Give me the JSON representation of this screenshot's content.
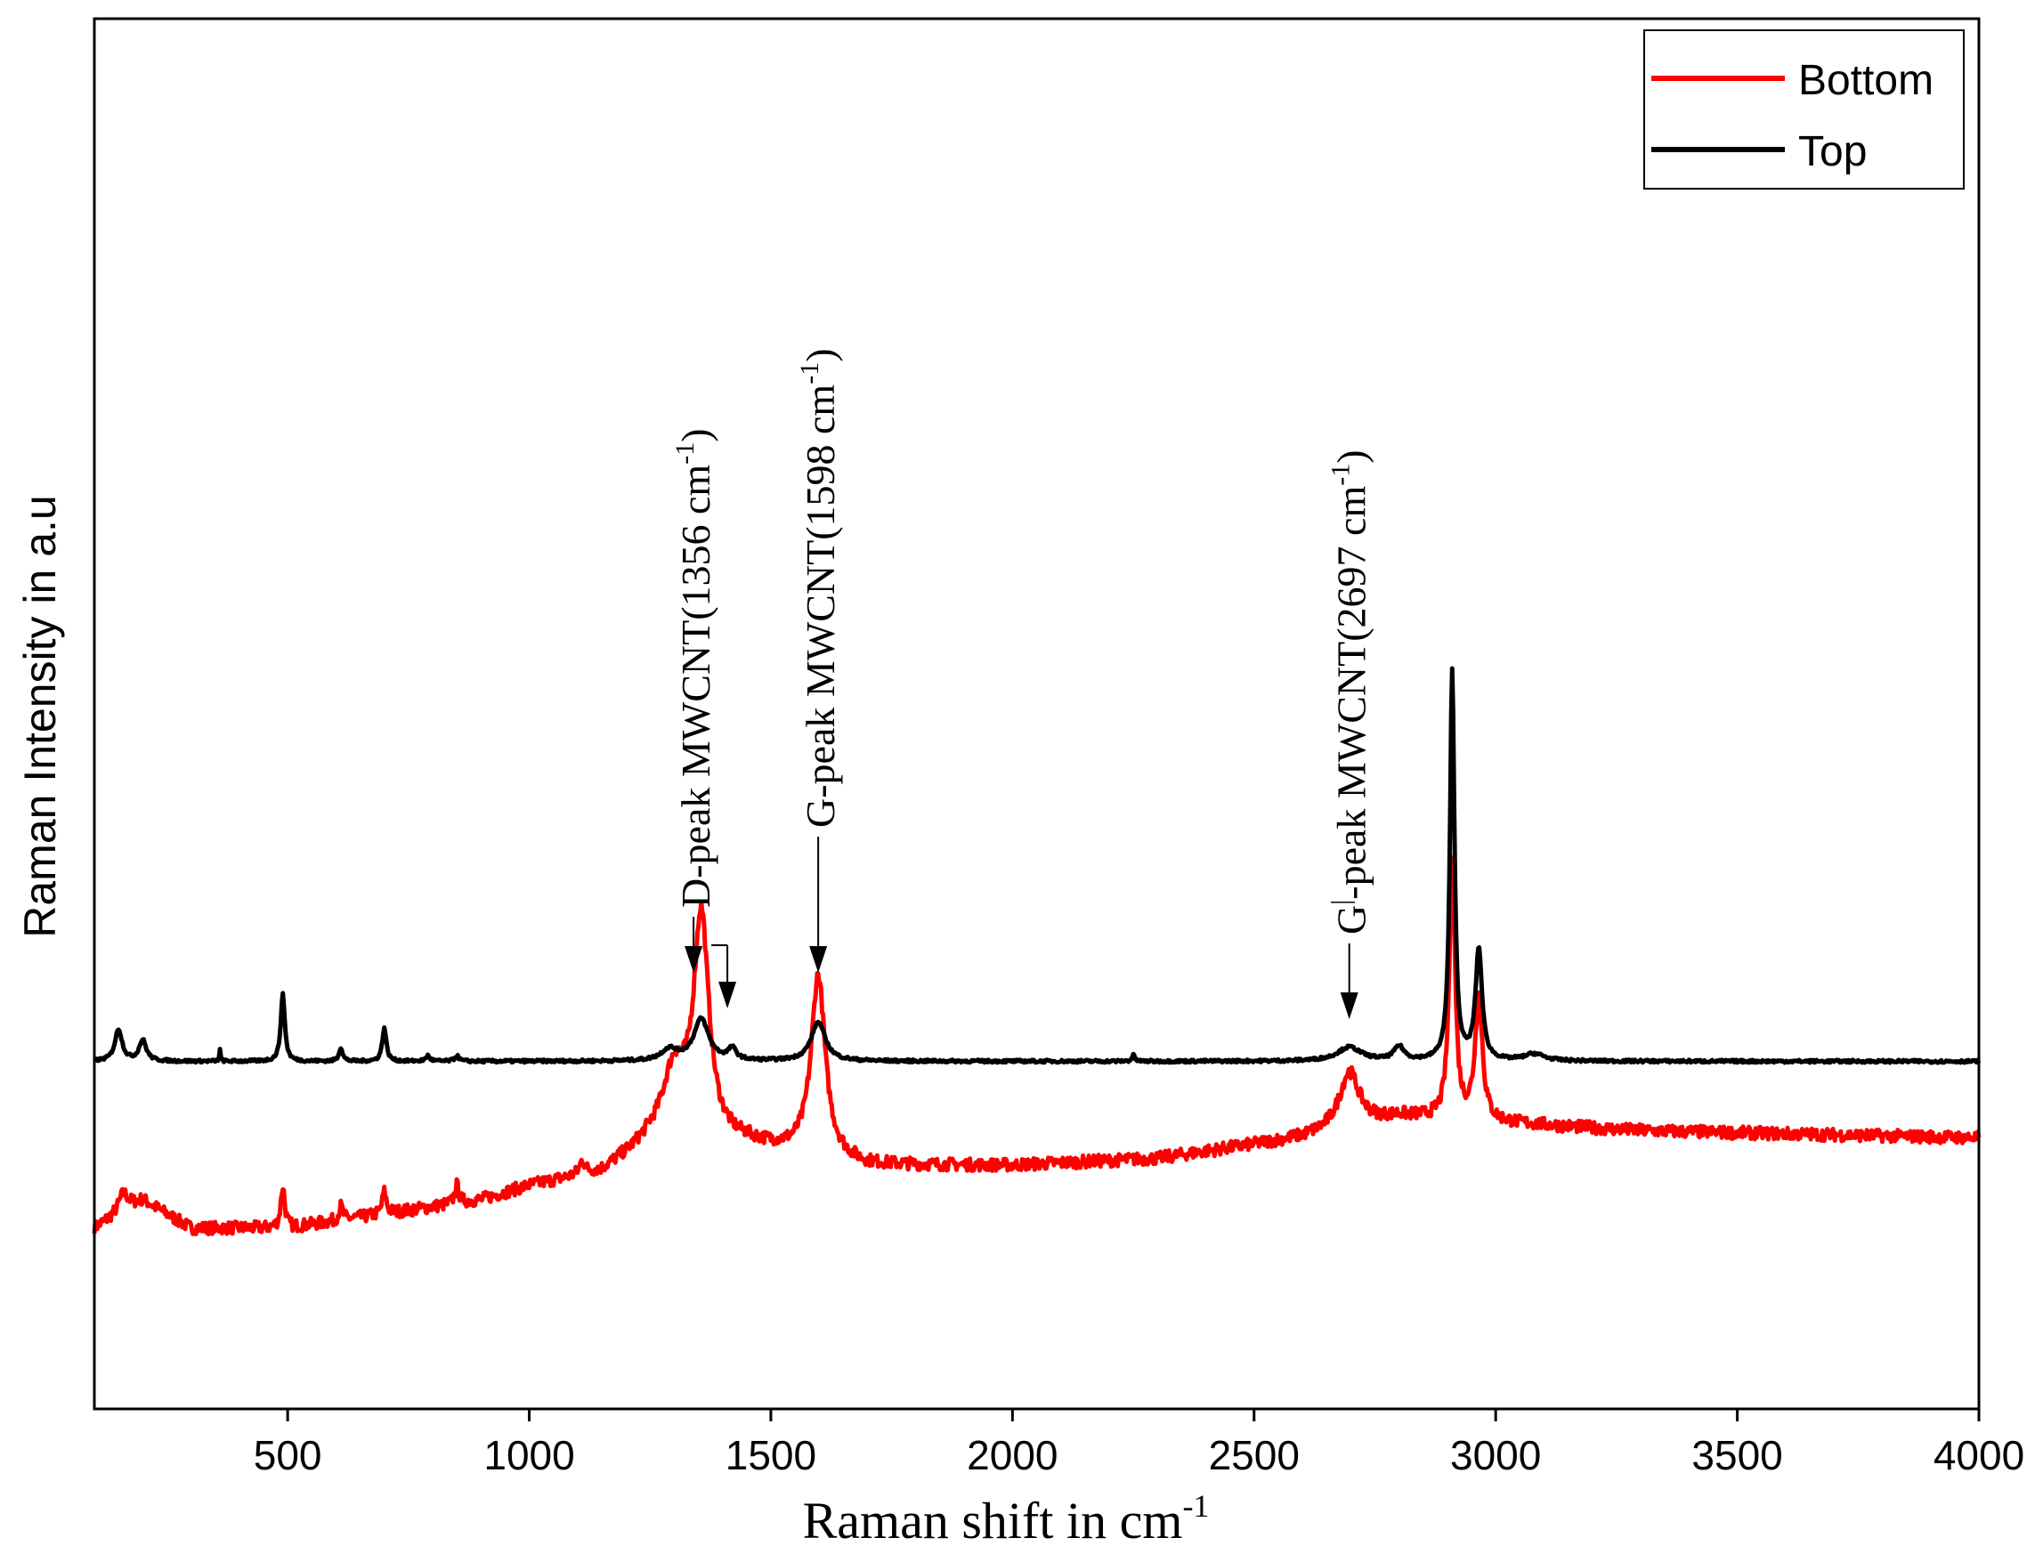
{
  "chart_data": {
    "type": "line",
    "title": "",
    "xlabel": "Raman shift in cm",
    "xlabel_superscript": "-1",
    "ylabel": "Raman Intensity in a.u",
    "xlim": [
      100,
      4000
    ],
    "ylim": [
      0,
      100
    ],
    "xticks": [
      500,
      1000,
      1500,
      2000,
      2500,
      3000,
      3500,
      4000
    ],
    "yticks_visible": false,
    "grid": false,
    "legend_position": "top-right",
    "series": [
      {
        "name": "Bottom",
        "color": "#ff0000",
        "baseline": [
          [
            100,
            13
          ],
          [
            200,
            15
          ],
          [
            300,
            13
          ],
          [
            500,
            13
          ],
          [
            700,
            14
          ],
          [
            900,
            15
          ],
          [
            1000,
            16
          ],
          [
            1150,
            17
          ],
          [
            1250,
            19
          ],
          [
            1450,
            19
          ],
          [
            1700,
            17.5
          ],
          [
            2000,
            17.5
          ],
          [
            2300,
            18
          ],
          [
            2600,
            19.5
          ],
          [
            2800,
            21
          ],
          [
            3050,
            20.5
          ],
          [
            3300,
            20
          ],
          [
            4000,
            19.5
          ]
        ],
        "peaks": [
          [
            160,
            1.3,
            25
          ],
          [
            490,
            3,
            10
          ],
          [
            610,
            1,
            10
          ],
          [
            700,
            1.6,
            10
          ],
          [
            850,
            1.3,
            10
          ],
          [
            1110,
            1,
            12
          ],
          [
            1300,
            5,
            60
          ],
          [
            1356,
            16,
            38
          ],
          [
            1598,
            13,
            35
          ],
          [
            2697,
            4,
            50
          ],
          [
            2910,
            19,
            14
          ],
          [
            2965,
            9,
            18
          ]
        ],
        "noise": 0.45
      },
      {
        "name": "Top",
        "color": "#000000",
        "baseline": [
          [
            100,
            25
          ],
          [
            200,
            25
          ],
          [
            400,
            25
          ],
          [
            1000,
            25
          ],
          [
            2000,
            25
          ],
          [
            3000,
            25
          ],
          [
            4000,
            25
          ]
        ],
        "peaks": [
          [
            150,
            2.3,
            18
          ],
          [
            200,
            1.5,
            18
          ],
          [
            360,
            0.8,
            3
          ],
          [
            490,
            4.8,
            10
          ],
          [
            610,
            1,
            9
          ],
          [
            700,
            2.4,
            10
          ],
          [
            790,
            0.4,
            10
          ],
          [
            850,
            0.4,
            10
          ],
          [
            1290,
            0.8,
            40
          ],
          [
            1356,
            3,
            38
          ],
          [
            1420,
            0.8,
            20
          ],
          [
            1598,
            2.8,
            35
          ],
          [
            2250,
            0.5,
            6
          ],
          [
            2697,
            1,
            60
          ],
          [
            2800,
            1,
            25
          ],
          [
            2910,
            28,
            11
          ],
          [
            2965,
            8,
            16
          ],
          [
            3080,
            0.5,
            50
          ]
        ],
        "noise": 0.1
      }
    ],
    "annotations": [
      {
        "text": "D-peak MWCNT(1356 cm",
        "sup": "-1",
        "close": ")",
        "x": 1356,
        "arrow_x": 1340
      },
      {
        "text": "G-peak MWCNT(1598 cm",
        "sup": "-1",
        "close": ")",
        "x": 1598,
        "arrow_x": 1598
      },
      {
        "text": "G",
        "text_sup": "|",
        "text_rest": "-peak MWCNT(2697 cm",
        "sup": "-1",
        "close": ")",
        "x": 2697,
        "arrow_x": 2697
      }
    ],
    "extra_marker": {
      "x": 1410,
      "label": ""
    }
  }
}
